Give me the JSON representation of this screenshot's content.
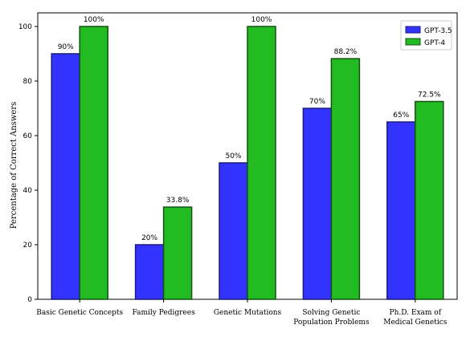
{
  "chart_data": {
    "type": "bar",
    "categories": [
      [
        "Basic Genetic Concepts"
      ],
      [
        "Family Pedigrees"
      ],
      [
        "Genetic Mutations"
      ],
      [
        "Solving Genetic",
        "Population Problems"
      ],
      [
        "Ph.D. Exam of",
        "Medical Genetics"
      ]
    ],
    "series": [
      {
        "name": "GPT-3.5",
        "values": [
          90,
          20,
          50,
          70,
          65
        ],
        "labels": [
          "90%",
          "20%",
          "50%",
          "70%",
          "65%"
        ],
        "color": "#3333ff",
        "edge": "#1a1a80"
      },
      {
        "name": "GPT-4",
        "values": [
          100,
          33.8,
          100,
          88.2,
          72.5
        ],
        "labels": [
          "100%",
          "33.8%",
          "100%",
          "88.2%",
          "72.5%"
        ],
        "color": "#22bb22",
        "edge": "#145214"
      }
    ],
    "ylabel": "Percentage of Correct Answers",
    "yticks": [
      0,
      20,
      40,
      60,
      80,
      100
    ],
    "ylim": [
      0,
      105
    ],
    "legend_position": "top-right",
    "grid": false
  }
}
